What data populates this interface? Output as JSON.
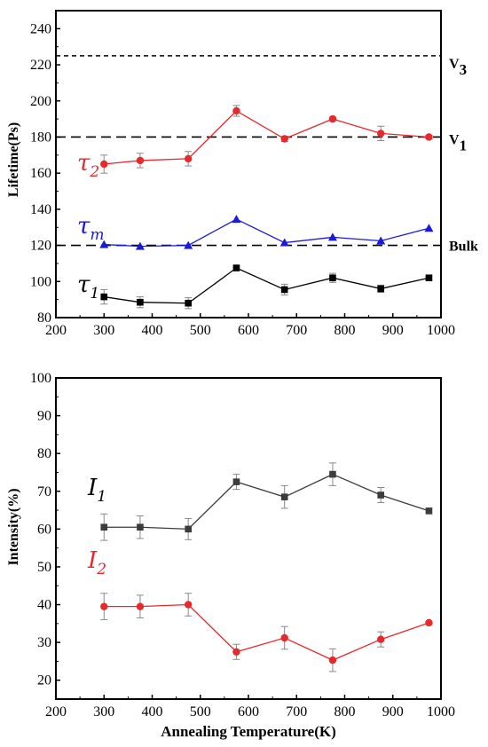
{
  "chart_data": [
    {
      "type": "line",
      "ylabel": "Lifetime(Ps)",
      "xlim": [
        200,
        1000
      ],
      "ylim": [
        80,
        250
      ],
      "xticks": [
        200,
        300,
        400,
        500,
        600,
        700,
        800,
        900,
        1000
      ],
      "yticks": [
        80,
        100,
        120,
        140,
        160,
        180,
        200,
        220,
        240
      ],
      "x": [
        300,
        375,
        475,
        575,
        675,
        775,
        875,
        975
      ],
      "reference_lines": [
        {
          "label": "V3",
          "value": 225,
          "label_main": "V",
          "label_sub": "3"
        },
        {
          "label": "V1",
          "value": 180,
          "label_main": "V",
          "label_sub": "1"
        },
        {
          "label": "Bulk",
          "value": 120,
          "label_main": "Bulk",
          "label_sub": ""
        }
      ],
      "series": [
        {
          "name": "τ2",
          "label_main": "τ",
          "label_sub": "2",
          "color": "#e8292b",
          "marker": "circle",
          "values": [
            165,
            167,
            168,
            194.5,
            179,
            190,
            182,
            180
          ],
          "errors": [
            5,
            4,
            4,
            3,
            1.5,
            1,
            4,
            1
          ]
        },
        {
          "name": "τm",
          "label_main": "τ",
          "label_sub": "m",
          "color": "#1a1adb",
          "marker": "triangle",
          "values": [
            120.5,
            119.5,
            120,
            134.5,
            121.5,
            124.5,
            122.5,
            129.5
          ],
          "errors": [
            0,
            0,
            0,
            0,
            0,
            0,
            0,
            0
          ]
        },
        {
          "name": "τ1",
          "label_main": "τ",
          "label_sub": "1",
          "color": "#000000",
          "marker": "square",
          "values": [
            91.5,
            88.5,
            88,
            107.5,
            95.5,
            102,
            96,
            102
          ],
          "errors": [
            4,
            3,
            3,
            1,
            3,
            2.5,
            2,
            1
          ]
        }
      ]
    },
    {
      "type": "line",
      "xlabel": "Annealing Temperature(K)",
      "ylabel": "Intensity(%)",
      "xlim": [
        200,
        1000
      ],
      "ylim": [
        15,
        100
      ],
      "xticks": [
        200,
        300,
        400,
        500,
        600,
        700,
        800,
        900,
        1000
      ],
      "yticks": [
        20,
        30,
        40,
        50,
        60,
        70,
        80,
        90,
        100
      ],
      "x": [
        300,
        375,
        475,
        575,
        675,
        775,
        875,
        975
      ],
      "series": [
        {
          "name": "I1",
          "label_main": "I",
          "label_sub": "1",
          "color": "#3c3c3c",
          "marker": "square",
          "values": [
            60.5,
            60.5,
            60,
            72.5,
            68.5,
            74.5,
            69,
            64.8
          ],
          "errors": [
            3.5,
            3,
            2.8,
            2,
            3,
            3,
            2,
            0
          ]
        },
        {
          "name": "I2",
          "label_main": "I",
          "label_sub": "2",
          "color": "#e8292b",
          "marker": "circle",
          "values": [
            39.5,
            39.5,
            40,
            27.5,
            31.2,
            25.3,
            30.8,
            35.2
          ],
          "errors": [
            3.5,
            3,
            3,
            2,
            3,
            3,
            2,
            0
          ]
        }
      ]
    }
  ]
}
